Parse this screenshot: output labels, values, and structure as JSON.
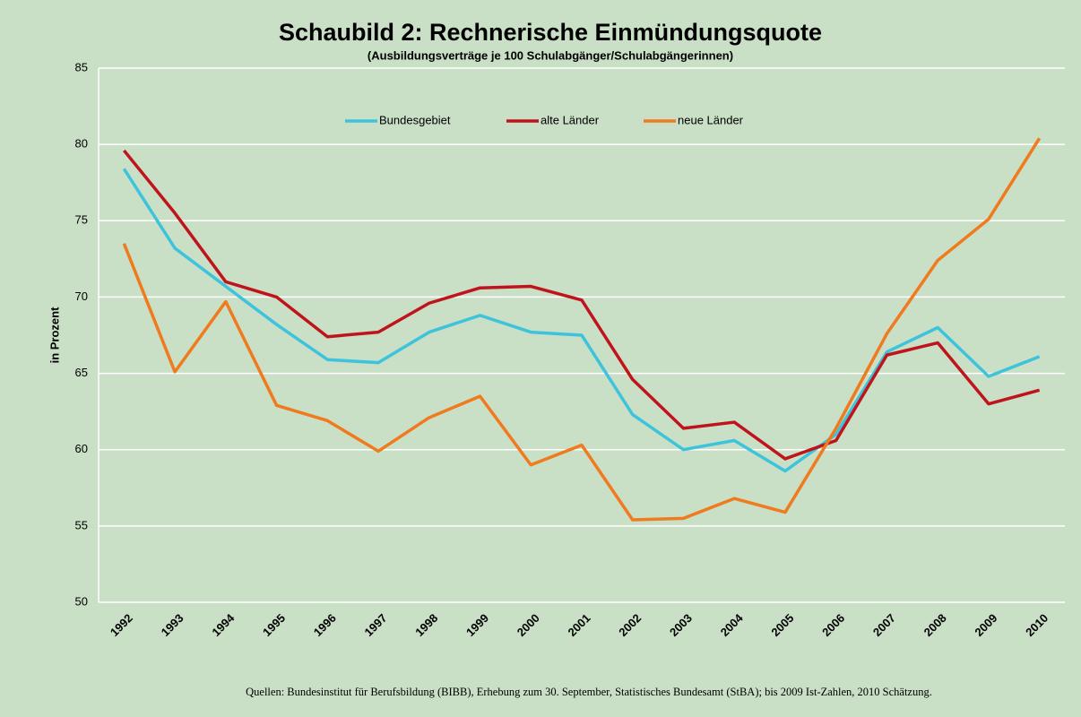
{
  "chart_data": {
    "type": "line",
    "title": "Schaubild 2: Rechnerische Einmündungsquote",
    "subtitle": "(Ausbildungsverträge je 100 Schulabgänger/Schulabgängerinnen)",
    "y_label": "in Prozent",
    "source": "Quellen: Bundesinstitut für Berufsbildung (BIBB), Erhebung zum 30. September, Statistisches Bundesamt (StBA); bis 2009 Ist-Zahlen, 2010 Schätzung.",
    "categories": [
      "1992",
      "1993",
      "1994",
      "1995",
      "1996",
      "1997",
      "1998",
      "1999",
      "2000",
      "2001",
      "2002",
      "2003",
      "2004",
      "2005",
      "2006",
      "2007",
      "2008",
      "2009",
      "2010"
    ],
    "series": [
      {
        "name": "Bundesgebiet",
        "color": "#3ec3dc",
        "values": [
          78.4,
          73.2,
          70.7,
          68.2,
          65.9,
          65.7,
          67.7,
          68.8,
          67.7,
          67.5,
          62.3,
          60.0,
          60.6,
          58.6,
          61.0,
          66.4,
          68.0,
          64.8,
          66.1
        ]
      },
      {
        "name": "alte Länder",
        "color": "#c0141c",
        "values": [
          79.6,
          75.5,
          71.0,
          70.0,
          67.4,
          67.7,
          69.6,
          70.6,
          70.7,
          69.8,
          64.6,
          61.4,
          61.8,
          59.4,
          60.6,
          66.2,
          67.0,
          63.0,
          63.9
        ]
      },
      {
        "name": "neue Länder",
        "color": "#f07b1e",
        "values": [
          73.5,
          65.1,
          69.7,
          62.9,
          61.9,
          59.9,
          62.1,
          63.5,
          59.0,
          60.3,
          55.4,
          55.5,
          56.8,
          55.9,
          61.4,
          67.6,
          72.4,
          75.1,
          80.4
        ]
      }
    ],
    "ylim": [
      50,
      85
    ],
    "yticks": [
      50,
      55,
      60,
      65,
      70,
      75,
      80,
      85
    ],
    "grid": true,
    "legend": "top"
  }
}
